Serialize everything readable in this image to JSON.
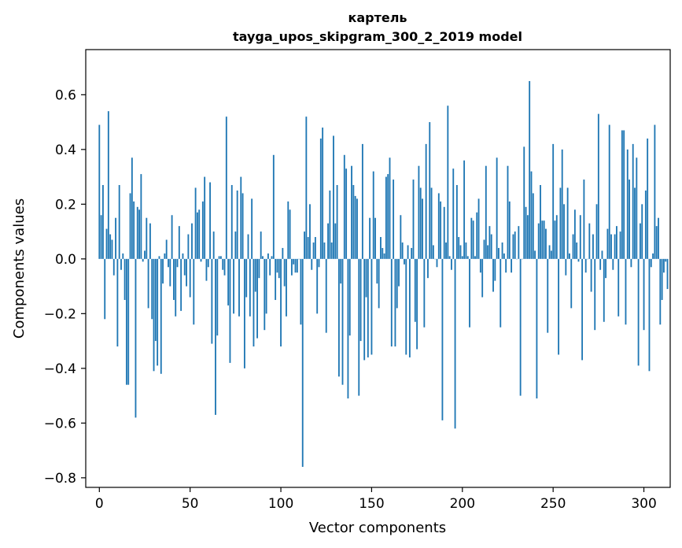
{
  "chart_data": {
    "type": "bar",
    "title": "картель",
    "subtitle": "tayga_upos_skipgram_300_2_2019 model",
    "xlabel": "Vector components",
    "ylabel": "Components values",
    "xlim": [
      -7.5,
      314.5
    ],
    "ylim": [
      -0.835,
      0.765
    ],
    "xticks": [
      0,
      50,
      100,
      150,
      200,
      250,
      300
    ],
    "xtick_labels": [
      "0",
      "50",
      "100",
      "150",
      "200",
      "250",
      "300"
    ],
    "yticks": [
      -0.8,
      -0.6,
      -0.4,
      -0.2,
      0.0,
      0.2,
      0.4,
      0.6
    ],
    "ytick_labels": [
      "−0.8",
      "−0.6",
      "−0.4",
      "−0.2",
      "0.0",
      "0.2",
      "0.4",
      "0.6"
    ],
    "grid": false,
    "bar_color": "#1f77b4",
    "x_start": 0,
    "values": [
      0.49,
      0.16,
      0.27,
      -0.22,
      0.11,
      0.54,
      0.09,
      0.07,
      -0.06,
      0.15,
      -0.32,
      0.27,
      -0.04,
      0.02,
      -0.15,
      -0.46,
      -0.46,
      0.24,
      0.37,
      0.21,
      -0.58,
      0.19,
      0.18,
      0.31,
      -0.01,
      0.03,
      0.15,
      -0.18,
      0.13,
      -0.22,
      -0.41,
      -0.3,
      -0.39,
      0.01,
      -0.42,
      -0.09,
      0.02,
      0.07,
      -0.03,
      -0.1,
      0.16,
      -0.15,
      -0.21,
      -0.03,
      0.12,
      -0.19,
      0.02,
      -0.06,
      -0.1,
      0.09,
      -0.14,
      0.13,
      -0.24,
      0.26,
      0.17,
      0.18,
      -0.01,
      0.21,
      0.3,
      -0.08,
      -0.03,
      0.28,
      -0.31,
      0.1,
      -0.57,
      -0.28,
      0.01,
      0.01,
      -0.04,
      -0.06,
      0.52,
      -0.17,
      -0.38,
      0.27,
      -0.2,
      0.1,
      0.25,
      -0.21,
      0.3,
      0.24,
      -0.4,
      -0.14,
      0.09,
      -0.21,
      0.22,
      -0.32,
      -0.12,
      -0.29,
      -0.07,
      0.1,
      0.01,
      -0.26,
      -0.2,
      0.02,
      -0.06,
      0.01,
      0.38,
      -0.15,
      -0.05,
      -0.07,
      -0.32,
      0.04,
      -0.1,
      -0.21,
      0.21,
      0.18,
      -0.06,
      -0.02,
      -0.05,
      -0.05,
      0.0,
      -0.24,
      -0.76,
      0.1,
      0.52,
      0.08,
      0.2,
      -0.04,
      0.06,
      0.08,
      -0.2,
      -0.03,
      0.44,
      0.48,
      0.06,
      -0.27,
      0.13,
      0.25,
      0.06,
      0.45,
      0.13,
      0.27,
      -0.43,
      -0.09,
      -0.46,
      0.38,
      0.33,
      -0.51,
      -0.28,
      0.34,
      0.27,
      0.23,
      0.22,
      -0.5,
      -0.3,
      0.42,
      -0.37,
      -0.14,
      -0.36,
      0.15,
      -0.35,
      0.32,
      0.15,
      -0.09,
      -0.18,
      0.08,
      0.04,
      0.02,
      0.3,
      0.31,
      0.37,
      -0.32,
      0.29,
      -0.32,
      -0.18,
      -0.1,
      0.16,
      0.06,
      -0.02,
      -0.35,
      0.05,
      -0.36,
      0.04,
      0.29,
      -0.23,
      -0.33,
      0.34,
      0.26,
      0.22,
      -0.25,
      0.42,
      -0.07,
      0.5,
      0.26,
      0.05,
      0.0,
      -0.03,
      0.24,
      0.21,
      -0.59,
      0.19,
      0.06,
      0.56,
      0.01,
      -0.04,
      0.33,
      -0.62,
      0.27,
      0.08,
      0.05,
      0.01,
      0.36,
      0.06,
      0.01,
      -0.25,
      0.15,
      0.14,
      0.01,
      0.17,
      0.22,
      -0.05,
      -0.14,
      0.07,
      0.34,
      0.05,
      0.12,
      0.09,
      -0.12,
      -0.08,
      0.37,
      0.04,
      -0.25,
      0.06,
      0.02,
      -0.05,
      0.34,
      0.21,
      -0.05,
      0.09,
      0.1,
      0.0,
      0.12,
      -0.5,
      0.0,
      0.41,
      0.19,
      0.16,
      0.65,
      0.32,
      0.24,
      0.03,
      -0.51,
      0.13,
      0.27,
      0.14,
      0.14,
      0.11,
      -0.27,
      0.05,
      0.03,
      0.42,
      0.14,
      0.16,
      -0.35,
      0.26,
      0.4,
      0.2,
      -0.06,
      0.26,
      0.02,
      -0.18,
      0.09,
      0.18,
      0.06,
      -0.01,
      0.16,
      -0.37,
      0.29,
      -0.05,
      0.0,
      0.13,
      -0.12,
      0.09,
      -0.26,
      0.2,
      0.53,
      -0.04,
      0.03,
      -0.23,
      -0.07,
      0.11,
      0.49,
      0.09,
      -0.04,
      0.09,
      0.12,
      -0.21,
      0.1,
      0.47,
      0.47,
      -0.24,
      0.4,
      0.29,
      -0.03,
      0.42,
      0.26,
      0.37,
      -0.39,
      0.13,
      0.2,
      -0.26,
      0.25,
      0.44,
      -0.41,
      -0.03,
      0.02,
      0.49,
      0.12,
      0.15,
      -0.24,
      -0.15,
      -0.05,
      -0.01,
      -0.11
    ]
  }
}
